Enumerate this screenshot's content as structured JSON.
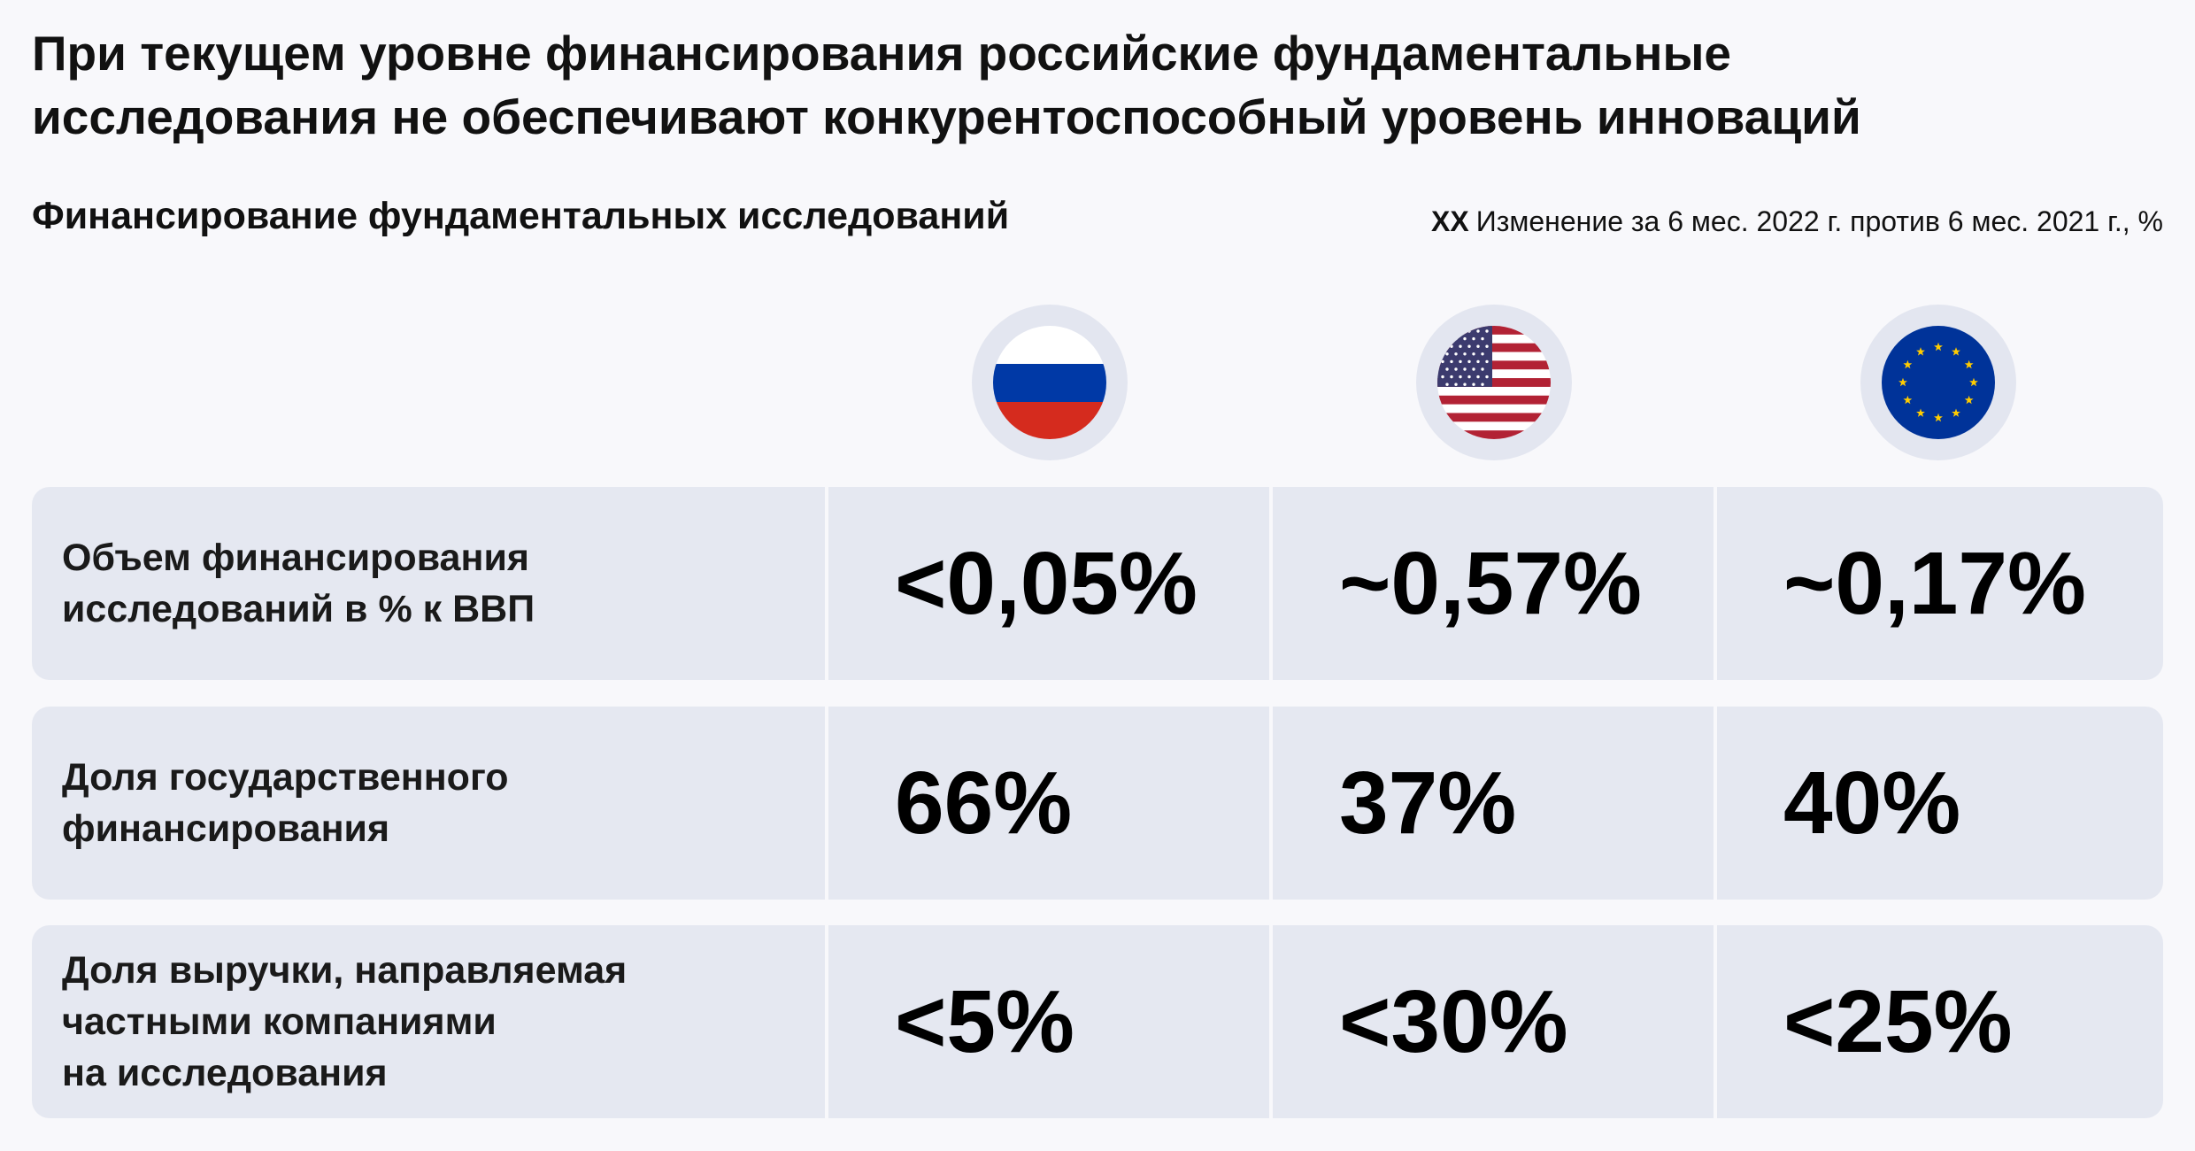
{
  "title": {
    "line1": "При текущем уровне финансирования российские фундаментальные",
    "line2": "исследования не обеспечивают конкурентоспособный уровень инноваций"
  },
  "subtitle": "Финансирование фундаментальных исследований",
  "legend": {
    "marker": "XX",
    "text": "Изменение за 6 мес. 2022 г. против 6 мес. 2021 г., %"
  },
  "columns": [
    {
      "flag": "russia-flag-icon"
    },
    {
      "flag": "usa-flag-icon"
    },
    {
      "flag": "eu-flag-icon"
    }
  ],
  "rows": [
    {
      "label_lines": [
        "Объем финансирования",
        "исследований в % к ВВП"
      ],
      "values": [
        "<0,05%",
        "~0,57%",
        "~0,17%"
      ]
    },
    {
      "label_lines": [
        "Доля государственного",
        "финансирования"
      ],
      "values": [
        "66%",
        "37%",
        "40%"
      ]
    },
    {
      "label_lines": [
        "Доля выручки, направляемая",
        "частными компаниями",
        "на исследования"
      ],
      "values": [
        "<5%",
        "<30%",
        "<25%"
      ]
    }
  ],
  "colors": {
    "cell_background": "#e5e8f1",
    "flag_ring": "#e3e6f0",
    "russia_white": "#ffffff",
    "russia_blue": "#0039a6",
    "russia_red": "#d52b1e",
    "usa_red": "#b22234",
    "usa_blue": "#3c3b6e",
    "eu_blue": "#003399",
    "eu_yellow": "#ffcc00"
  }
}
